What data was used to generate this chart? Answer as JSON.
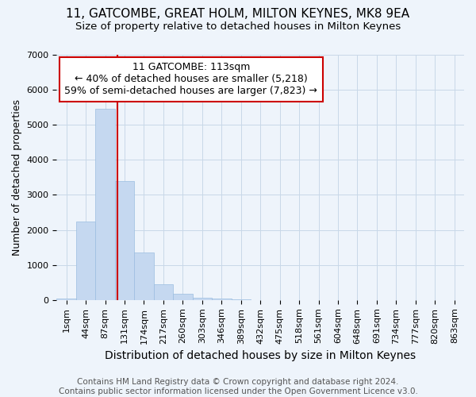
{
  "title": "11, GATCOMBE, GREAT HOLM, MILTON KEYNES, MK8 9EA",
  "subtitle": "Size of property relative to detached houses in Milton Keynes",
  "xlabel": "Distribution of detached houses by size in Milton Keynes",
  "ylabel": "Number of detached properties",
  "footer_line1": "Contains HM Land Registry data © Crown copyright and database right 2024.",
  "footer_line2": "Contains public sector information licensed under the Open Government Licence v3.0.",
  "bar_labels": [
    "1sqm",
    "44sqm",
    "87sqm",
    "131sqm",
    "174sqm",
    "217sqm",
    "260sqm",
    "303sqm",
    "346sqm",
    "389sqm",
    "432sqm",
    "475sqm",
    "518sqm",
    "561sqm",
    "604sqm",
    "648sqm",
    "691sqm",
    "734sqm",
    "777sqm",
    "820sqm",
    "863sqm"
  ],
  "bar_values": [
    50,
    2250,
    5450,
    3400,
    1350,
    450,
    175,
    75,
    30,
    10,
    5,
    0,
    0,
    0,
    0,
    0,
    0,
    0,
    0,
    0,
    0
  ],
  "bar_color": "#c5d8f0",
  "bar_edge_color": "#9bbde0",
  "grid_color": "#c8d8e8",
  "background_color": "#eef4fb",
  "annotation_line1": "11 GATCOMBE: 113sqm",
  "annotation_line2": "← 40% of detached houses are smaller (5,218)",
  "annotation_line3": "59% of semi-detached houses are larger (7,823) →",
  "annotation_box_color": "white",
  "annotation_box_edge_color": "#cc0000",
  "vline_color": "#cc0000",
  "vline_x_index": 2.62,
  "ylim": [
    0,
    7000
  ],
  "yticks": [
    0,
    1000,
    2000,
    3000,
    4000,
    5000,
    6000,
    7000
  ],
  "title_fontsize": 11,
  "subtitle_fontsize": 9.5,
  "xlabel_fontsize": 10,
  "ylabel_fontsize": 9,
  "tick_fontsize": 8,
  "annotation_fontsize": 9,
  "footer_fontsize": 7.5
}
